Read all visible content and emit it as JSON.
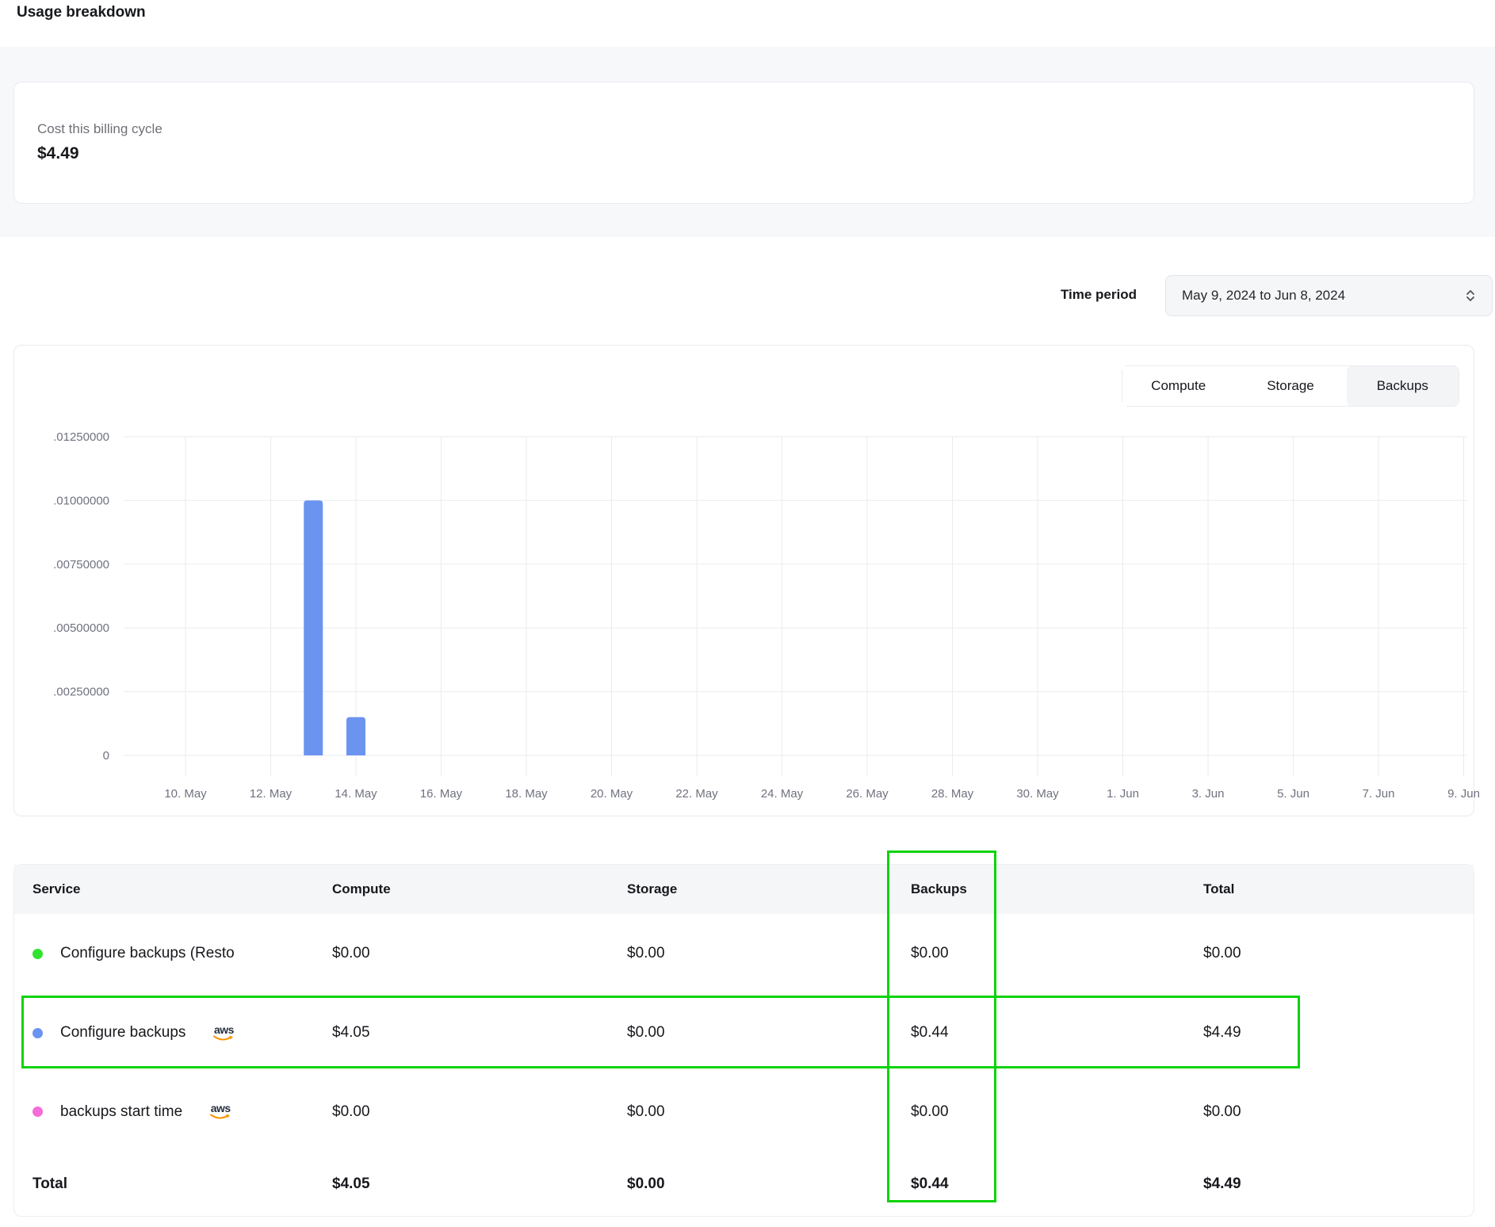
{
  "page": {
    "title": "Usage breakdown"
  },
  "cost_card": {
    "label": "Cost this billing cycle",
    "value": "$4.49"
  },
  "time_period": {
    "label": "Time period",
    "value": "May 9, 2024 to Jun 8, 2024"
  },
  "chart": {
    "tabs": [
      {
        "label": "Compute",
        "selected": false
      },
      {
        "label": "Storage",
        "selected": false
      },
      {
        "label": "Backups",
        "selected": true
      }
    ]
  },
  "chart_data": {
    "type": "bar",
    "title": "",
    "xlabel": "",
    "ylabel": "",
    "ylim": [
      0,
      0.0125
    ],
    "grid": true,
    "legend": "none",
    "y_tick_values": [
      0.0125,
      0.01,
      0.0075,
      0.005,
      0.0025,
      0
    ],
    "y_tick_labels": [
      ".01250000",
      ".01000000",
      ".00750000",
      ".00500000",
      ".00250000",
      "0"
    ],
    "x_tick_labels": [
      "10. May",
      "12. May",
      "14. May",
      "16. May",
      "18. May",
      "20. May",
      "22. May",
      "24. May",
      "26. May",
      "28. May",
      "30. May",
      "1. Jun",
      "3. Jun",
      "5. Jun",
      "7. Jun",
      "9. Jun"
    ],
    "bar_color": "#6b93f0",
    "bars": [
      {
        "date": "13. May",
        "tick_pos": 1.5,
        "value": 0.01
      },
      {
        "date": "14. May",
        "tick_pos": 2.0,
        "value": 0.0015
      }
    ]
  },
  "table": {
    "headers": {
      "service": "Service",
      "compute": "Compute",
      "storage": "Storage",
      "backups": "Backups",
      "total": "Total"
    },
    "aws_label": "aws",
    "rows": [
      {
        "service": "Configure backups (Resto",
        "dot_color": "#2fe32f",
        "compute": "$0.00",
        "storage": "$0.00",
        "backups": "$0.00",
        "total": "$0.00"
      },
      {
        "service": "Configure backups",
        "dot_color": "#6b93f0",
        "compute": "$4.05",
        "storage": "$0.00",
        "backups": "$0.44",
        "total": "$4.49"
      },
      {
        "service": "backups start time",
        "dot_color": "#f56bd9",
        "compute": "$0.00",
        "storage": "$0.00",
        "backups": "$0.00",
        "total": "$0.00"
      }
    ],
    "total_row": {
      "label": "Total",
      "compute": "$4.05",
      "storage": "$0.00",
      "backups": "$0.44",
      "total": "$4.49"
    }
  },
  "annotations": {
    "color": "#0cd30c"
  }
}
